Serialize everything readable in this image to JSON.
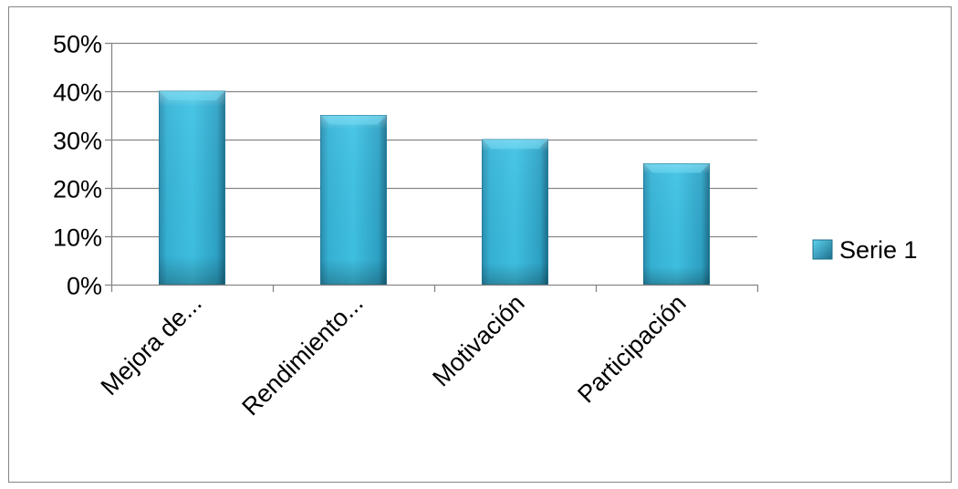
{
  "chart_data": {
    "type": "bar",
    "categories": [
      "Mejora de...",
      "Rendimiento...",
      "Motivación",
      "Participación"
    ],
    "series": [
      {
        "name": "Serie 1",
        "values": [
          0.4,
          0.35,
          0.3,
          0.25
        ],
        "color": "#31AECF"
      }
    ],
    "ylim": [
      0,
      0.5
    ],
    "yticks": [
      "0%",
      "10%",
      "20%",
      "30%",
      "40%",
      "50%"
    ],
    "ytick_values": [
      0,
      0.1,
      0.2,
      0.3,
      0.4,
      0.5
    ],
    "grid": true,
    "legend_position": "right",
    "title": "",
    "xlabel": "",
    "ylabel": ""
  }
}
